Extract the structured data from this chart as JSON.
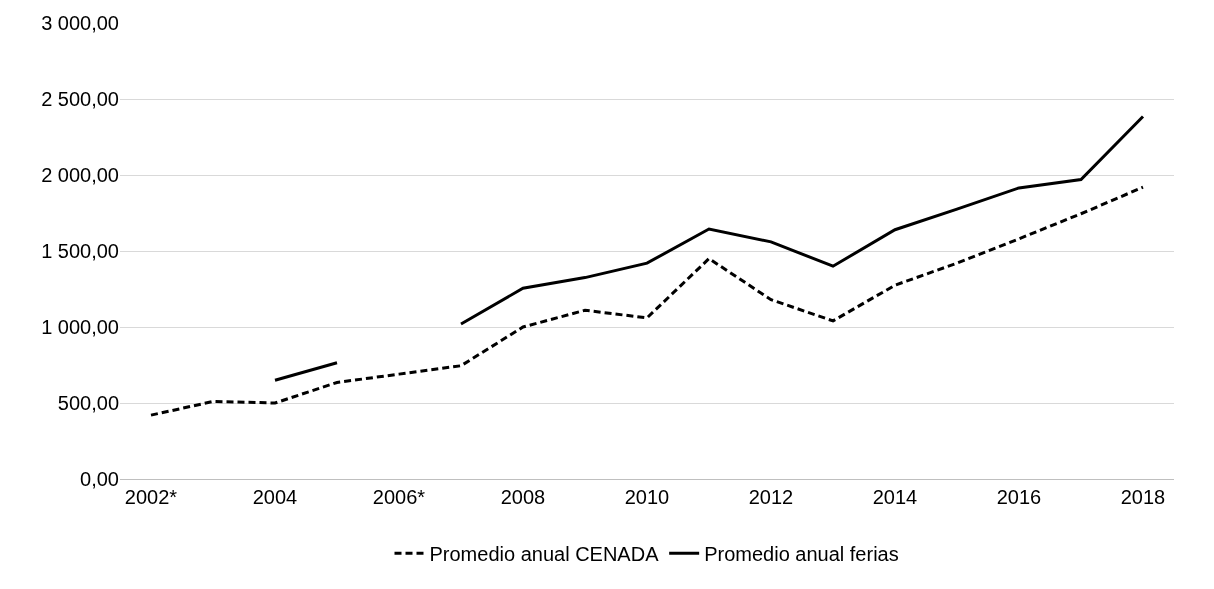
{
  "chart_data": {
    "type": "line",
    "categories": [
      "2002*",
      null,
      "2004",
      null,
      "2006*",
      null,
      "2008",
      null,
      "2010",
      null,
      "2012",
      null,
      "2014",
      null,
      "2016",
      null,
      "2018"
    ],
    "series": [
      {
        "name": "Promedio anual CENADA",
        "color": "#000000",
        "line_style": "dashed",
        "values": [
          420,
          510,
          500,
          635,
          690,
          745,
          1000,
          1110,
          1060,
          1450,
          1180,
          1040,
          1275,
          1420,
          1580,
          1745,
          1920
        ]
      },
      {
        "name": "Promedio anual ferias",
        "color": "#000000",
        "line_style": "solid",
        "values": [
          null,
          null,
          650,
          765,
          null,
          1020,
          1255,
          1325,
          1420,
          1645,
          1560,
          1400,
          1640,
          1775,
          1915,
          1970,
          2385
        ]
      }
    ],
    "ylim": [
      0,
      3000
    ],
    "yticks": [
      {
        "value": 0,
        "label": "0,00"
      },
      {
        "value": 500,
        "label": "500,00"
      },
      {
        "value": 1000,
        "label": "1 000,00"
      },
      {
        "value": 1500,
        "label": "1 500,00"
      },
      {
        "value": 2000,
        "label": "2 000,00"
      },
      {
        "value": 2500,
        "label": "2 500,00"
      },
      {
        "value": 3000,
        "label": "3 000,00"
      }
    ],
    "grid": "y",
    "legend": "bottom",
    "marker": "none"
  }
}
